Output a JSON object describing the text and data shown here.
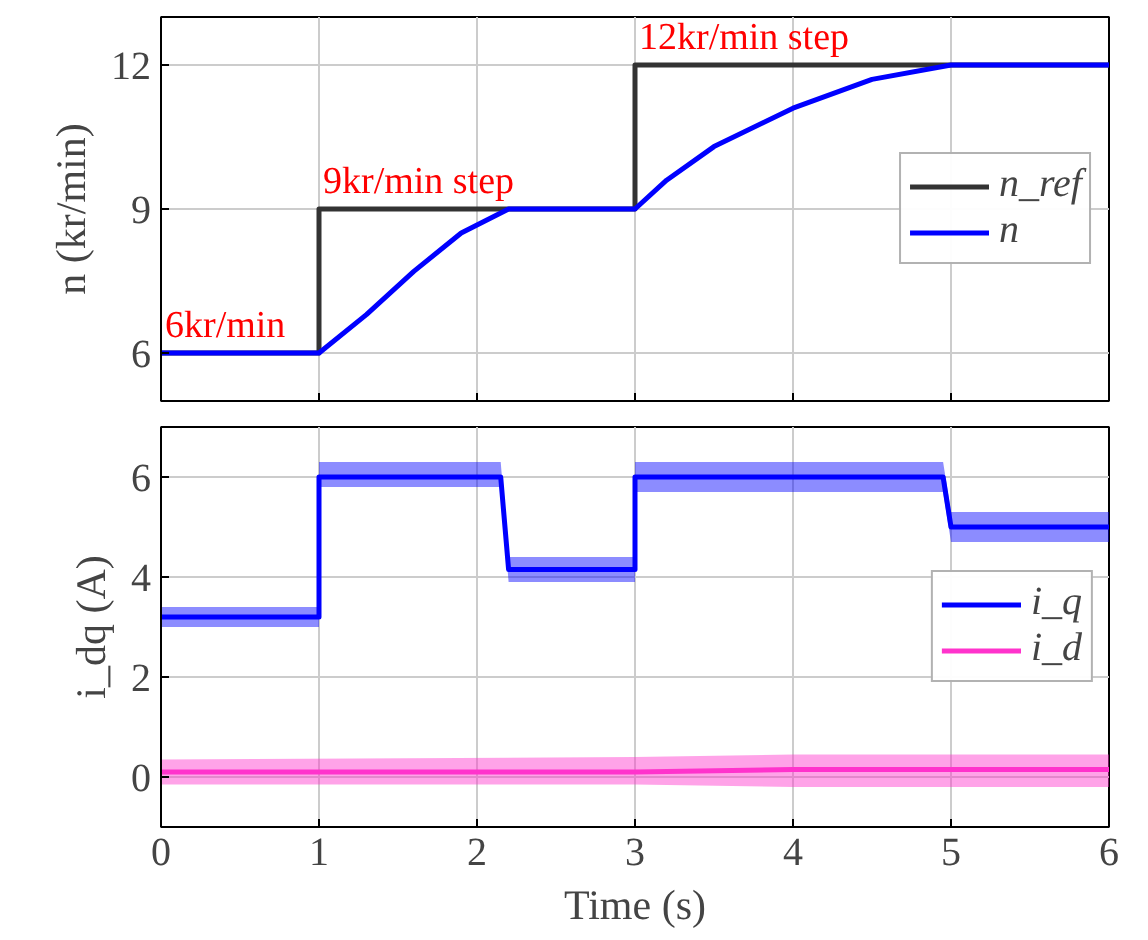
{
  "chart_data": [
    {
      "type": "line",
      "ylabel": "n (kr/min)",
      "xlim": [
        0,
        6
      ],
      "xticks": [
        0,
        1,
        2,
        3,
        4,
        5,
        6
      ],
      "ylim": [
        5,
        13
      ],
      "yticks": [
        6,
        9,
        12
      ],
      "grid": true,
      "legend": "right",
      "tick_labels": "y",
      "annotations": [
        {
          "text": "6kr/min",
          "x": 0,
          "y": 6
        },
        {
          "text": "9kr/min step",
          "x": 1,
          "y": 9
        },
        {
          "text": "12kr/min step",
          "x": 3,
          "y": 12
        }
      ],
      "series": [
        {
          "name": "n_ref",
          "color": "#333333",
          "x": [
            0,
            1,
            1,
            3,
            3,
            6
          ],
          "values": [
            6,
            6,
            9,
            9,
            12,
            12
          ]
        },
        {
          "name": "n",
          "color": "#0000ff",
          "x": [
            0,
            1,
            1.3,
            1.6,
            1.9,
            2.2,
            3,
            3.2,
            3.5,
            4,
            4.5,
            5,
            6
          ],
          "values": [
            6,
            6,
            6.8,
            7.7,
            8.5,
            9,
            9,
            9.6,
            10.3,
            11.1,
            11.7,
            12,
            12
          ]
        }
      ]
    },
    {
      "type": "line",
      "xlabel": "Time (s)",
      "ylabel": "i_dq (A)",
      "xlim": [
        0,
        6
      ],
      "xticks": [
        0,
        1,
        2,
        3,
        4,
        5,
        6
      ],
      "ylim": [
        -1,
        7
      ],
      "yticks": [
        0,
        2,
        4,
        6
      ],
      "grid": true,
      "legend": "right",
      "series": [
        {
          "name": "i_q",
          "color": "#0000ff",
          "x": [
            0,
            1,
            1,
            2.15,
            2.2,
            3,
            3,
            4.95,
            5,
            6
          ],
          "values": [
            3.2,
            3.2,
            6.0,
            6.0,
            4.15,
            4.15,
            6.0,
            6.0,
            5.0,
            5.0
          ],
          "lower": [
            3.0,
            3.0,
            5.8,
            5.8,
            3.9,
            3.9,
            5.7,
            5.7,
            4.7,
            4.7
          ],
          "upper": [
            3.4,
            3.4,
            6.3,
            6.3,
            4.4,
            4.4,
            6.3,
            6.3,
            5.3,
            5.3
          ]
        },
        {
          "name": "i_d",
          "color": "#ff33cc",
          "x": [
            0,
            3,
            4,
            6
          ],
          "values": [
            0.1,
            0.1,
            0.15,
            0.15
          ],
          "lower": [
            -0.15,
            -0.15,
            -0.2,
            -0.2
          ],
          "upper": [
            0.35,
            0.4,
            0.45,
            0.45
          ]
        }
      ]
    }
  ]
}
